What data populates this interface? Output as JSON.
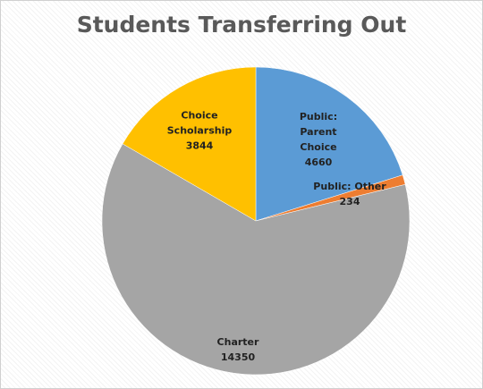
{
  "chart_data": {
    "type": "pie",
    "title": "Students Transferring Out",
    "categories": [
      "Public: Parent Choice",
      "Public: Other",
      "Charter",
      "Choice Scholarship"
    ],
    "values": [
      4660,
      234,
      14350,
      3844
    ],
    "colors": [
      "#5b9bd5",
      "#ed7d31",
      "#a5a5a5",
      "#ffc000"
    ]
  }
}
